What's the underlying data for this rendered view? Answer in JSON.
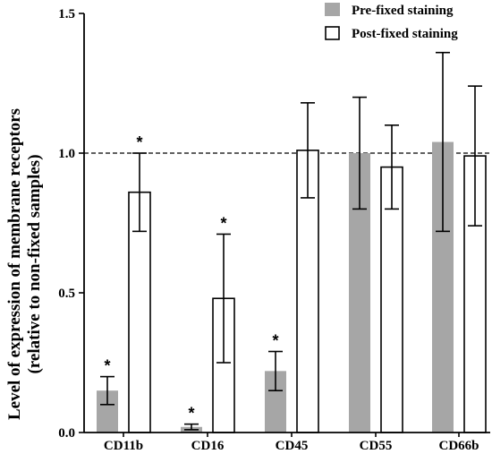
{
  "chart_data": {
    "type": "bar",
    "ylabel_line1": "Level of expression of membrane receptors",
    "ylabel_line2": "(relative to non-fixed samples)",
    "xlabel": "",
    "ylim": [
      0,
      1.5
    ],
    "yticks": [
      "0.0",
      "0.5",
      "1.0",
      "1.5"
    ],
    "reference_line": 1.0,
    "categories": [
      "CD11b",
      "CD16",
      "CD45",
      "CD55",
      "CD66b"
    ],
    "legend_position": "top-right",
    "series": [
      {
        "name": "Pre-fixed staining",
        "color": "#a6a6a6",
        "style": "filled",
        "values": [
          0.15,
          0.02,
          0.22,
          1.0,
          1.04
        ],
        "error_low": [
          0.1,
          0.01,
          0.15,
          0.8,
          0.72
        ],
        "error_high": [
          0.2,
          0.03,
          0.29,
          1.2,
          1.36
        ],
        "significant": [
          true,
          true,
          true,
          false,
          false
        ]
      },
      {
        "name": "Post-fixed staining",
        "color": "#ffffff",
        "style": "outline",
        "values": [
          0.86,
          0.48,
          1.01,
          0.95,
          0.99
        ],
        "error_low": [
          0.72,
          0.25,
          0.84,
          0.8,
          0.74
        ],
        "error_high": [
          1.0,
          0.71,
          1.18,
          1.1,
          1.24
        ],
        "significant": [
          true,
          true,
          false,
          false,
          false
        ]
      }
    ],
    "significance_marker": "*"
  }
}
